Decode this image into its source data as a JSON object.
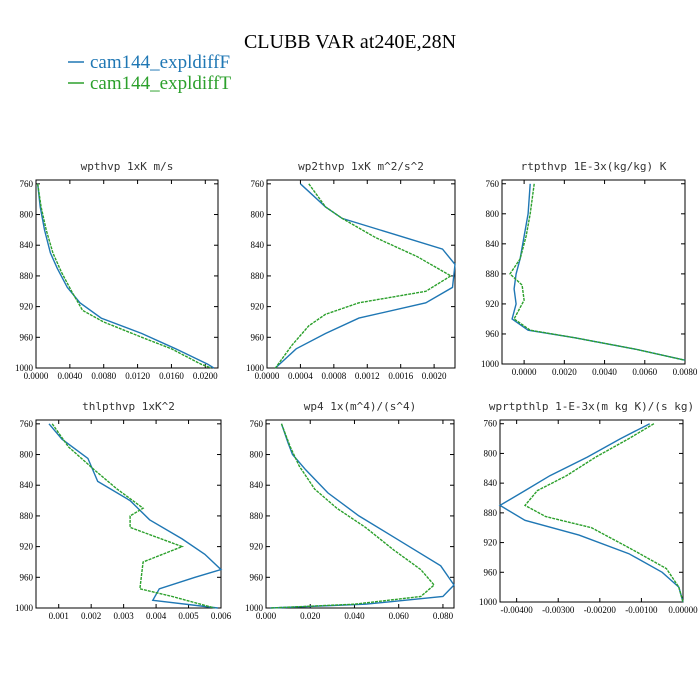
{
  "figure": {
    "title": "CLUBB VAR at240E,28N",
    "legend": [
      {
        "label": "cam144_expldiffF",
        "color": "#1f77b4"
      },
      {
        "label": "cam144_expldiffT",
        "color": "#2ca02c"
      }
    ]
  },
  "chart_data": [
    {
      "type": "line",
      "title": "wpthvp   1xK m/s",
      "xlim": [
        0.0,
        0.0215
      ],
      "ylim": [
        1000,
        755
      ],
      "xticks": [
        0.0,
        0.004,
        0.008,
        0.012,
        0.016,
        0.02
      ],
      "xtick_labels": [
        "0.0000",
        "0.0040",
        "0.0080",
        "0.0120",
        "0.0160",
        "0.0200"
      ],
      "yticks": [
        760,
        800,
        840,
        880,
        920,
        960,
        1000
      ],
      "series": [
        {
          "name": "cam144_expldiffF",
          "x": [
            0.0002,
            0.0005,
            0.001,
            0.0017,
            0.0025,
            0.0037,
            0.0052,
            0.0077,
            0.0125,
            0.0165,
            0.0203,
            0.021
          ],
          "y": [
            760,
            790,
            820,
            850,
            870,
            895,
            915,
            935,
            955,
            975,
            995,
            1000
          ]
        },
        {
          "name": "cam144_expldiffT",
          "x": [
            0.0002,
            0.0006,
            0.0012,
            0.002,
            0.003,
            0.0042,
            0.0055,
            0.008,
            0.0125,
            0.016,
            0.0195,
            0.0207
          ],
          "y": [
            760,
            790,
            820,
            850,
            875,
            900,
            925,
            940,
            960,
            975,
            995,
            1000
          ]
        }
      ]
    },
    {
      "type": "line",
      "title": "wp2thvp   1xK m^2/s^2",
      "xlim": [
        0.0,
        0.00225
      ],
      "ylim": [
        1000,
        755
      ],
      "xticks": [
        0.0,
        0.0004,
        0.0008,
        0.0012,
        0.0016,
        0.002
      ],
      "xtick_labels": [
        "0.0000",
        "0.0004",
        "0.0008",
        "0.0012",
        "0.0016",
        "0.0020"
      ],
      "yticks": [
        760,
        800,
        840,
        880,
        920,
        960,
        1000
      ],
      "series": [
        {
          "name": "cam144_expldiffF",
          "x": [
            0.0004,
            0.0007,
            0.0009,
            0.0015,
            0.0021,
            0.00225,
            0.00222,
            0.0019,
            0.0011,
            0.0007,
            0.00035,
            0.0001
          ],
          "y": [
            760,
            790,
            805,
            825,
            845,
            865,
            895,
            915,
            935,
            955,
            975,
            1000
          ]
        },
        {
          "name": "cam144_expldiffT",
          "x": [
            0.0005,
            0.0007,
            0.0009,
            0.0013,
            0.0018,
            0.0022,
            0.0019,
            0.0011,
            0.0007,
            0.0005,
            0.0003,
            0.0001
          ],
          "y": [
            760,
            790,
            805,
            830,
            855,
            880,
            900,
            915,
            930,
            945,
            970,
            1000
          ]
        }
      ]
    },
    {
      "type": "line",
      "title": "rtpthvp   1E-3x(kg/kg) K",
      "xlim": [
        -0.0011,
        0.008
      ],
      "ylim": [
        1000,
        755
      ],
      "xticks": [
        0.0,
        0.002,
        0.004,
        0.006,
        0.008
      ],
      "xtick_labels": [
        "0.0000",
        "0.0020",
        "0.0040",
        "0.0060",
        "0.0080"
      ],
      "yticks": [
        760,
        800,
        840,
        880,
        920,
        960,
        1000
      ],
      "series": [
        {
          "name": "cam144_expldiffF",
          "x": [
            0.0003,
            0.0002,
            0.0,
            -0.0002,
            -0.0004,
            -0.0005,
            -0.0004,
            -0.0006,
            0.0002,
            0.0025,
            0.0055,
            0.008
          ],
          "y": [
            760,
            800,
            830,
            860,
            880,
            900,
            920,
            940,
            955,
            965,
            980,
            995
          ]
        },
        {
          "name": "cam144_expldiffT",
          "x": [
            0.0005,
            0.0003,
            0.0001,
            -0.0002,
            -0.0007,
            -0.0001,
            0.0,
            -0.0005,
            0.0003,
            0.0025,
            0.0055,
            0.008
          ],
          "y": [
            760,
            800,
            830,
            860,
            880,
            895,
            915,
            940,
            955,
            965,
            980,
            995
          ]
        }
      ]
    },
    {
      "type": "line",
      "title": "thlpthvp   1xK^2",
      "xlim": [
        0.0003,
        0.006
      ],
      "ylim": [
        1000,
        755
      ],
      "xticks": [
        0.001,
        0.002,
        0.003,
        0.004,
        0.005,
        0.006
      ],
      "xtick_labels": [
        "0.001",
        "0.002",
        "0.003",
        "0.004",
        "0.005",
        "0.006"
      ],
      "yticks": [
        760,
        800,
        840,
        880,
        920,
        960,
        1000
      ],
      "series": [
        {
          "name": "cam144_expldiffF",
          "x": [
            0.0007,
            0.0011,
            0.0019,
            0.0022,
            0.0032,
            0.0038,
            0.0048,
            0.0055,
            0.006,
            0.0052,
            0.0041,
            0.0039,
            0.0059
          ],
          "y": [
            760,
            780,
            805,
            835,
            860,
            885,
            910,
            930,
            950,
            960,
            975,
            990,
            1000
          ]
        },
        {
          "name": "cam144_expldiffT",
          "x": [
            0.0008,
            0.0013,
            0.0021,
            0.0028,
            0.0036,
            0.0032,
            0.0032,
            0.0048,
            0.0036,
            0.0035,
            0.0045,
            0.0058
          ],
          "y": [
            760,
            790,
            820,
            845,
            870,
            880,
            895,
            920,
            940,
            975,
            985,
            1000
          ]
        }
      ]
    },
    {
      "type": "line",
      "title": "wp4   1x(m^4)/(s^4)",
      "xlim": [
        0.0,
        0.085
      ],
      "ylim": [
        1000,
        755
      ],
      "xticks": [
        0.0,
        0.02,
        0.04,
        0.06,
        0.08
      ],
      "xtick_labels": [
        "0.000",
        "0.020",
        "0.040",
        "0.060",
        "0.080"
      ],
      "yticks": [
        760,
        800,
        840,
        880,
        920,
        960,
        1000
      ],
      "series": [
        {
          "name": "cam144_expldiffF",
          "x": [
            0.007,
            0.01,
            0.012,
            0.018,
            0.028,
            0.042,
            0.062,
            0.079,
            0.085,
            0.08,
            0.045,
            0.002
          ],
          "y": [
            760,
            785,
            800,
            820,
            850,
            880,
            915,
            945,
            970,
            985,
            995,
            1000
          ]
        },
        {
          "name": "cam144_expldiffT",
          "x": [
            0.007,
            0.011,
            0.015,
            0.022,
            0.032,
            0.045,
            0.058,
            0.07,
            0.076,
            0.07,
            0.04,
            0.002
          ],
          "y": [
            760,
            790,
            815,
            845,
            870,
            895,
            925,
            950,
            970,
            985,
            995,
            1000
          ]
        }
      ]
    },
    {
      "type": "line",
      "title": "wprtpthlp   1-E-3x(m kg K)/(s kg)",
      "xlim": [
        -0.0044,
        0.0
      ],
      "ylim": [
        1000,
        755
      ],
      "xticks": [
        -0.004,
        -0.003,
        -0.002,
        -0.001,
        0.0
      ],
      "xtick_labels": [
        "-0.00400",
        "-0.00300",
        "-0.00200",
        "-0.00100",
        "0.00000"
      ],
      "yticks": [
        760,
        800,
        840,
        880,
        920,
        960,
        1000
      ],
      "series": [
        {
          "name": "cam144_expldiffF",
          "x": [
            -0.0008,
            -0.0015,
            -0.0023,
            -0.0032,
            -0.0038,
            -0.0044,
            -0.0038,
            -0.0025,
            -0.0013,
            -0.0005,
            -0.0001,
            0.0
          ],
          "y": [
            760,
            780,
            805,
            830,
            850,
            870,
            890,
            910,
            935,
            960,
            980,
            1000
          ]
        },
        {
          "name": "cam144_expldiffT",
          "x": [
            -0.0007,
            -0.0013,
            -0.0021,
            -0.0028,
            -0.0035,
            -0.0038,
            -0.0033,
            -0.0022,
            -0.0012,
            -0.0004,
            -0.0001,
            0.0
          ],
          "y": [
            760,
            780,
            805,
            830,
            850,
            870,
            885,
            900,
            930,
            955,
            980,
            1000
          ]
        }
      ]
    }
  ]
}
